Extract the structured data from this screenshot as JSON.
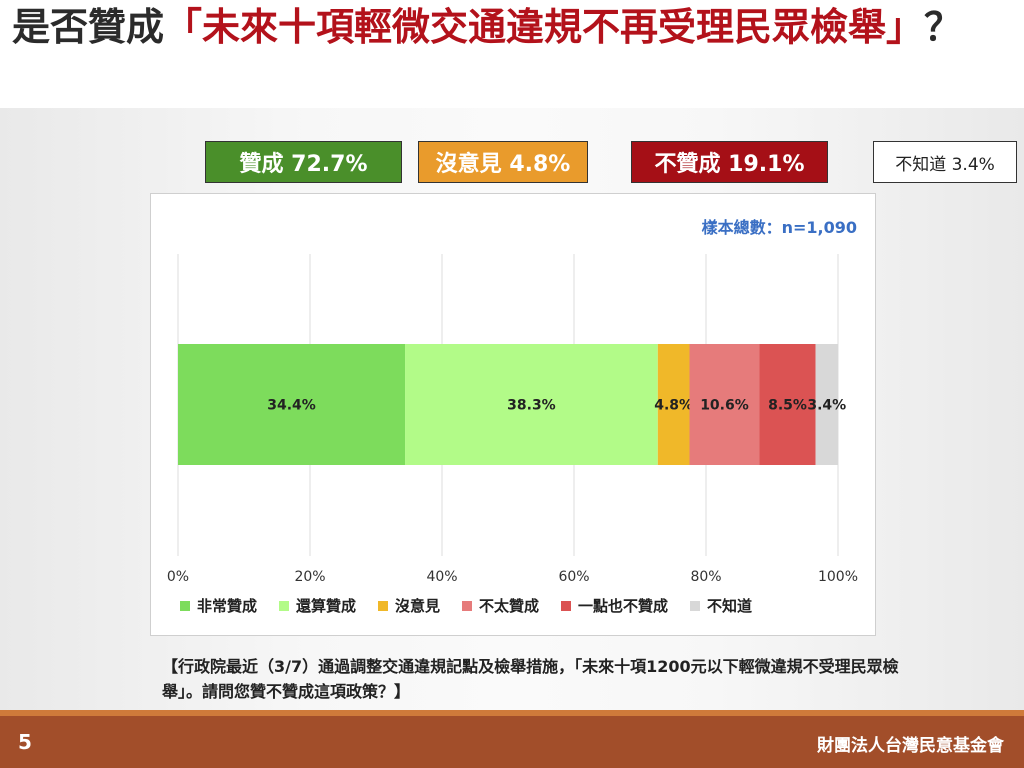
{
  "header": {
    "title_prefix": "是否贊成",
    "title_highlight": "「未來十項輕微交通違規不再受理民眾檢舉」",
    "title_suffix": "？"
  },
  "summary": [
    {
      "label": "贊成 72.7%",
      "color": "#4a8f2a"
    },
    {
      "label": "沒意見 4.8%",
      "color": "#e99b2c"
    },
    {
      "label": "不贊成 19.1%",
      "color": "#a50f16"
    },
    {
      "label": "不知道 3.4%",
      "color": "#ffffff"
    }
  ],
  "sample_size": "樣本總數：n=1,090",
  "chart_data": {
    "type": "bar",
    "orientation": "horizontal",
    "stacked": true,
    "categories": [
      ""
    ],
    "series": [
      {
        "name": "非常贊成",
        "values": [
          34.4
        ],
        "label": "34.4%",
        "color": "#7ddc5c"
      },
      {
        "name": "還算贊成",
        "values": [
          38.3
        ],
        "label": "38.3%",
        "color": "#b2fb88"
      },
      {
        "name": "沒意見",
        "values": [
          4.8
        ],
        "label": "4.8%",
        "color": "#f0b829"
      },
      {
        "name": "不太贊成",
        "values": [
          10.6
        ],
        "label": "10.6%",
        "color": "#e67b7b"
      },
      {
        "name": "一點也不贊成",
        "values": [
          8.5
        ],
        "label": "8.5%",
        "color": "#db5353"
      },
      {
        "name": "不知道",
        "values": [
          3.4
        ],
        "label": "3.4%",
        "color": "#d8d8d8"
      }
    ],
    "xlim": [
      0,
      100
    ],
    "xticks": [
      "0%",
      "20%",
      "40%",
      "60%",
      "80%",
      "100%"
    ],
    "grid": true,
    "legend": "bottom"
  },
  "question": "【行政院最近（3/7）通過調整交通違規記點及檢舉措施，「未來十項1200元以下輕微違規不受理民眾檢舉」。請問您贊不贊成這項政策？】",
  "footer": {
    "page": "5",
    "org": "財團法人台灣民意基金會"
  }
}
